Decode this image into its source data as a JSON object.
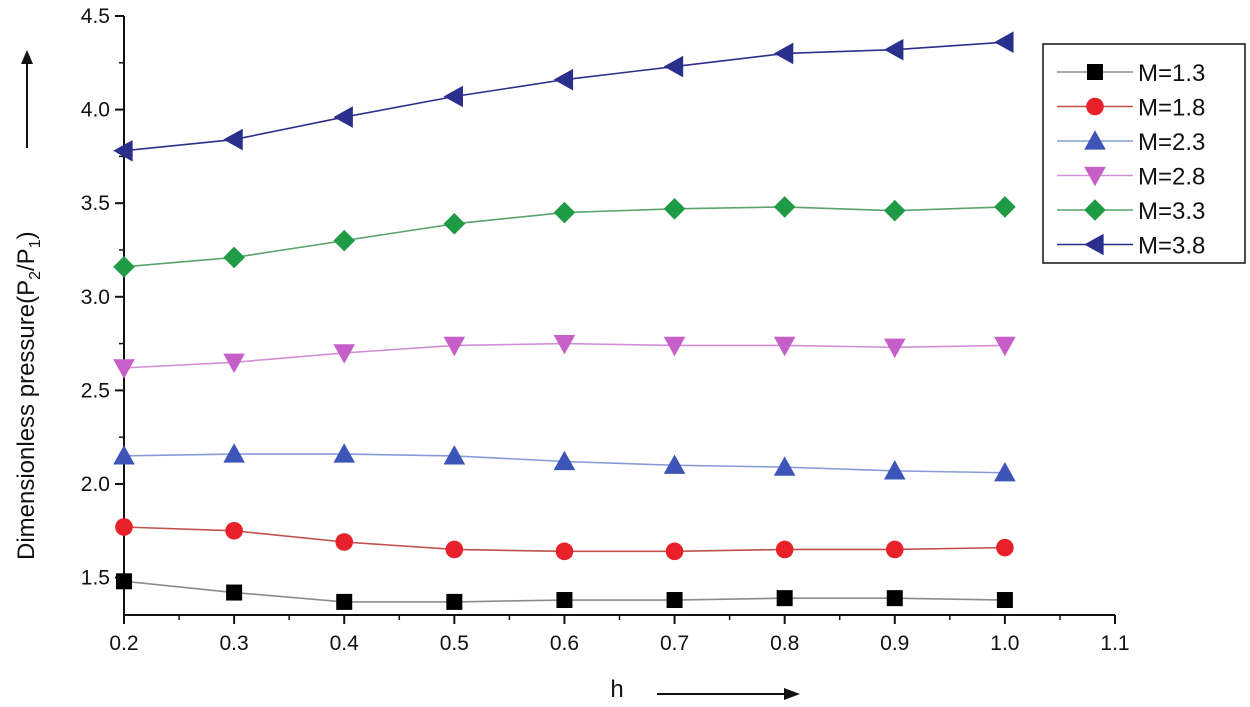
{
  "chart_data": {
    "type": "line",
    "title": "",
    "xlabel": "h",
    "ylabel": {
      "prefix": "Dimensionless pressure(P",
      "sub1": "2",
      "mid": "/P",
      "sub2": "1",
      "suffix": ")"
    },
    "xlim": [
      0.2,
      1.1
    ],
    "ylim": [
      1.3,
      4.5
    ],
    "x_ticks": [
      "0.2",
      "0.3",
      "0.4",
      "0.5",
      "0.6",
      "0.7",
      "0.8",
      "0.9",
      "1.0",
      "1.1"
    ],
    "y_ticks": [
      "1.5",
      "2.0",
      "2.5",
      "3.0",
      "3.5",
      "4.0",
      "4.5"
    ],
    "grid": false,
    "legend_position": "top-right",
    "x": [
      0.2,
      0.3,
      0.4,
      0.5,
      0.6,
      0.7,
      0.8,
      0.9,
      1.0
    ],
    "series": [
      {
        "name": "M=1.3",
        "marker": "square",
        "color": "#000000",
        "line_color": "#8c8c8c",
        "values": [
          1.48,
          1.42,
          1.37,
          1.37,
          1.38,
          1.38,
          1.39,
          1.39,
          1.38
        ]
      },
      {
        "name": "M=1.8",
        "marker": "circle",
        "color": "#e8202a",
        "line_color": "#c0504a",
        "values": [
          1.77,
          1.75,
          1.69,
          1.65,
          1.64,
          1.64,
          1.65,
          1.65,
          1.66
        ]
      },
      {
        "name": "M=2.3",
        "marker": "triangle-up",
        "color": "#3d55b8",
        "line_color": "#8a9ad6",
        "values": [
          2.15,
          2.16,
          2.16,
          2.15,
          2.12,
          2.1,
          2.09,
          2.07,
          2.06
        ]
      },
      {
        "name": "M=2.8",
        "marker": "triangle-down",
        "color": "#c65fc8",
        "line_color": "#d28fd6",
        "values": [
          2.62,
          2.65,
          2.7,
          2.74,
          2.75,
          2.74,
          2.74,
          2.73,
          2.74
        ]
      },
      {
        "name": "M=3.3",
        "marker": "diamond",
        "color": "#1f9a45",
        "line_color": "#5aa46c",
        "values": [
          3.16,
          3.21,
          3.3,
          3.39,
          3.45,
          3.47,
          3.48,
          3.46,
          3.48
        ]
      },
      {
        "name": "M=3.8",
        "marker": "triangle-left",
        "color": "#2b2f8c",
        "line_color": "#2b2f8c",
        "values": [
          3.78,
          3.84,
          3.96,
          4.07,
          4.16,
          4.23,
          4.3,
          4.32,
          4.36
        ]
      }
    ]
  }
}
